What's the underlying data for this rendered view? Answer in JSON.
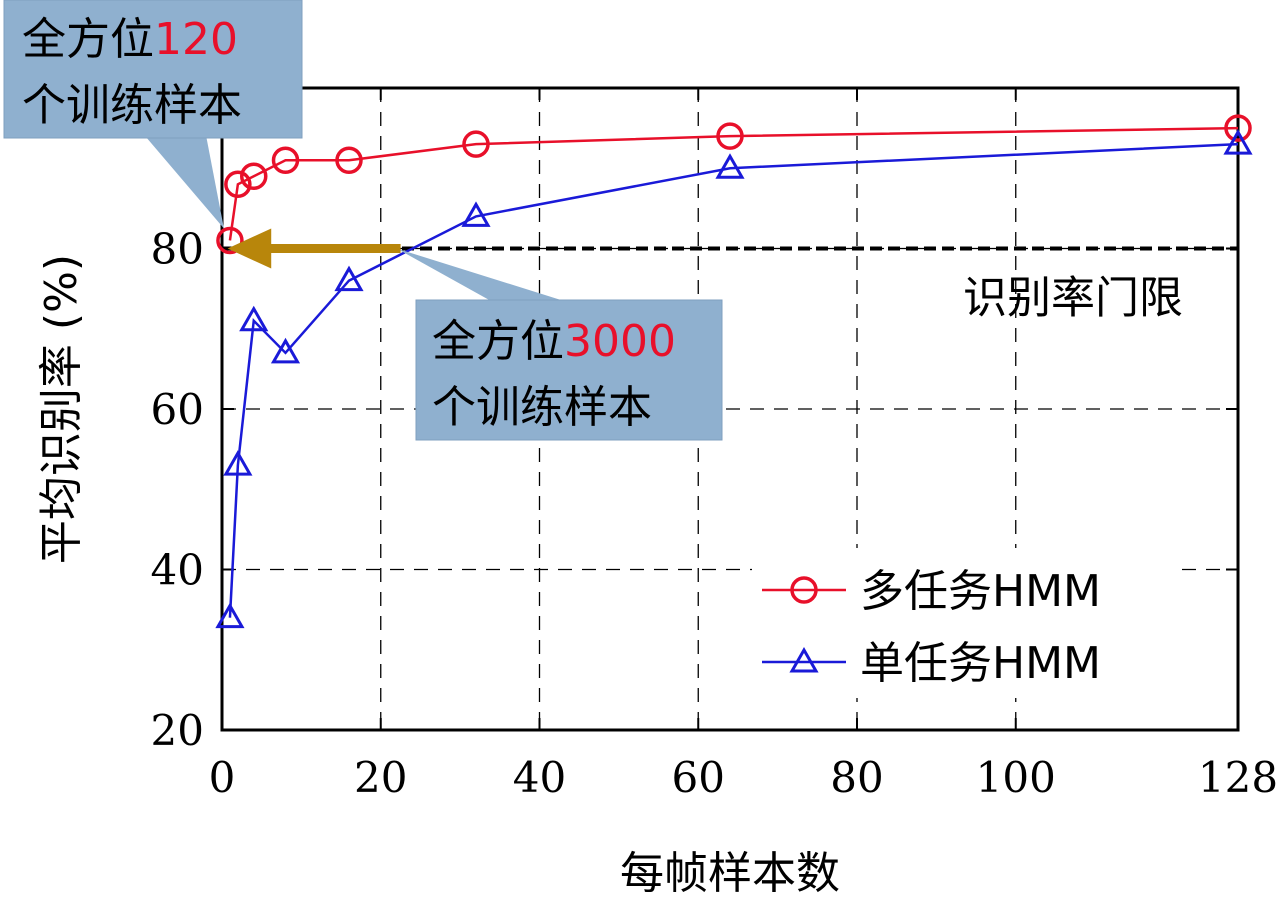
{
  "chart_data": {
    "type": "line",
    "xlabel": "每帧样本数",
    "ylabel": "平均识别率 (%)",
    "xlim": [
      0,
      128
    ],
    "ylim": [
      20,
      100
    ],
    "x_ticks": [
      0,
      20,
      40,
      60,
      80,
      100,
      128
    ],
    "x_tick_labels": [
      "0",
      "20",
      "40",
      "60",
      "80",
      "100",
      "128"
    ],
    "y_ticks": [
      20,
      40,
      60,
      80
    ],
    "y_tick_labels": [
      "20",
      "40",
      "60",
      "80"
    ],
    "grid": true,
    "legend_position": "bottom-right",
    "series": [
      {
        "name": "多任务HMM",
        "color": "#e8102a",
        "marker": "circle",
        "x": [
          1,
          2,
          4,
          8,
          16,
          32,
          64,
          128
        ],
        "y": [
          81,
          88,
          89,
          91,
          91,
          93,
          94,
          95
        ]
      },
      {
        "name": "单任务HMM",
        "color": "#1a1ad8",
        "marker": "triangle",
        "x": [
          1,
          2,
          4,
          8,
          16,
          32,
          64,
          128
        ],
        "y": [
          34,
          53,
          71,
          67,
          76,
          84,
          90,
          93
        ]
      }
    ],
    "threshold": {
      "y": 80,
      "label": "识别率门限"
    },
    "annotations": [
      {
        "text_prefix": "全方位",
        "text_highlight": "120",
        "text_line2": "个训练样本"
      },
      {
        "text_prefix": "全方位",
        "text_highlight": "3000",
        "text_line2": "个训练样本"
      }
    ],
    "colors": {
      "highlight": "#e8102a",
      "callout_fill": "#8fb0cf",
      "arrow": "#b8860b",
      "grid": "#000000"
    }
  }
}
